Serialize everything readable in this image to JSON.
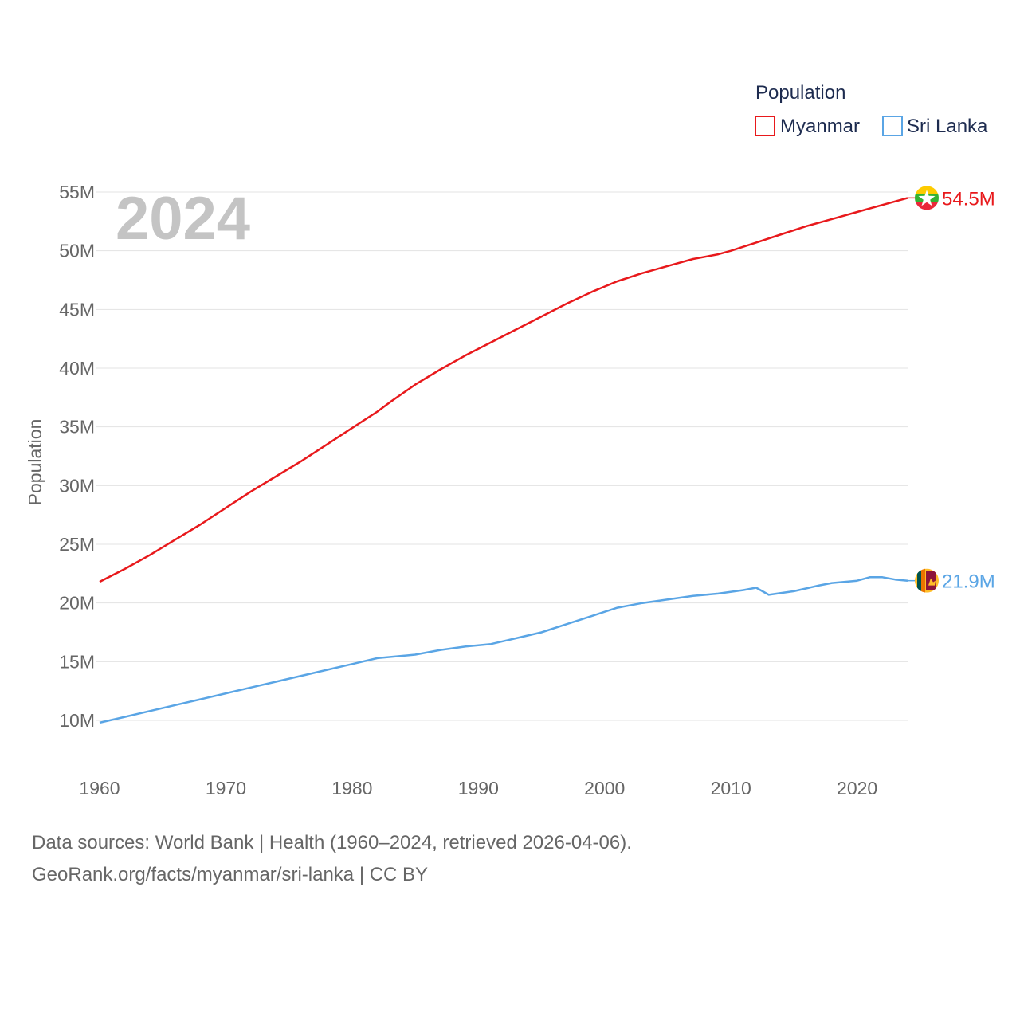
{
  "chart_data": {
    "type": "line",
    "title": "",
    "year_watermark": "2024",
    "ylabel": "Population",
    "xlabel": "",
    "xlim": [
      1960,
      2024
    ],
    "ylim": [
      7.5,
      57
    ],
    "y_ticks": [
      10,
      15,
      20,
      25,
      30,
      35,
      40,
      45,
      50,
      55
    ],
    "y_tick_labels": [
      "10M",
      "15M",
      "20M",
      "25M",
      "30M",
      "35M",
      "40M",
      "45M",
      "50M",
      "55M"
    ],
    "x_ticks": [
      1960,
      1970,
      1980,
      1990,
      2000,
      2010,
      2020
    ],
    "x_tick_labels": [
      "1960",
      "1970",
      "1980",
      "1990",
      "2000",
      "2010",
      "2020"
    ],
    "legend": {
      "title": "Population",
      "position": "top-right"
    },
    "series": [
      {
        "name": "Myanmar",
        "color": "#e8191c",
        "end_label": "54.5M",
        "flag": "myanmar-flag",
        "x": [
          1960,
          1962,
          1964,
          1966,
          1968,
          1970,
          1972,
          1974,
          1976,
          1978,
          1980,
          1982,
          1983,
          1985,
          1987,
          1989,
          1991,
          1993,
          1995,
          1997,
          1999,
          2001,
          2003,
          2005,
          2007,
          2009,
          2010,
          2012,
          2014,
          2016,
          2018,
          2020,
          2022,
          2024
        ],
        "values": [
          21.8,
          22.9,
          24.1,
          25.4,
          26.7,
          28.1,
          29.5,
          30.8,
          32.1,
          33.5,
          34.9,
          36.3,
          37.1,
          38.6,
          39.9,
          41.1,
          42.2,
          43.3,
          44.4,
          45.5,
          46.5,
          47.4,
          48.1,
          48.7,
          49.3,
          49.7,
          50.0,
          50.7,
          51.4,
          52.1,
          52.7,
          53.3,
          53.9,
          54.5
        ]
      },
      {
        "name": "Sri Lanka",
        "color": "#5aa5e5",
        "end_label": "21.9M",
        "flag": "sri-lanka-flag",
        "x": [
          1960,
          1962,
          1964,
          1966,
          1968,
          1970,
          1972,
          1974,
          1976,
          1978,
          1980,
          1982,
          1985,
          1987,
          1989,
          1991,
          1993,
          1995,
          1997,
          1999,
          2001,
          2003,
          2005,
          2007,
          2009,
          2011,
          2012,
          2013,
          2015,
          2017,
          2018,
          2020,
          2021,
          2022,
          2023,
          2024
        ],
        "values": [
          9.8,
          10.3,
          10.8,
          11.3,
          11.8,
          12.3,
          12.8,
          13.3,
          13.8,
          14.3,
          14.8,
          15.3,
          15.6,
          16.0,
          16.3,
          16.5,
          17.0,
          17.5,
          18.2,
          18.9,
          19.6,
          20.0,
          20.3,
          20.6,
          20.8,
          21.1,
          21.3,
          20.7,
          21.0,
          21.5,
          21.7,
          21.9,
          22.2,
          22.2,
          22.0,
          21.9
        ]
      }
    ]
  },
  "footer": {
    "line1": "Data sources: World Bank | Health (1960–2024, retrieved 2026-04-06).",
    "line2": "GeoRank.org/facts/myanmar/sri-lanka | CC BY"
  }
}
